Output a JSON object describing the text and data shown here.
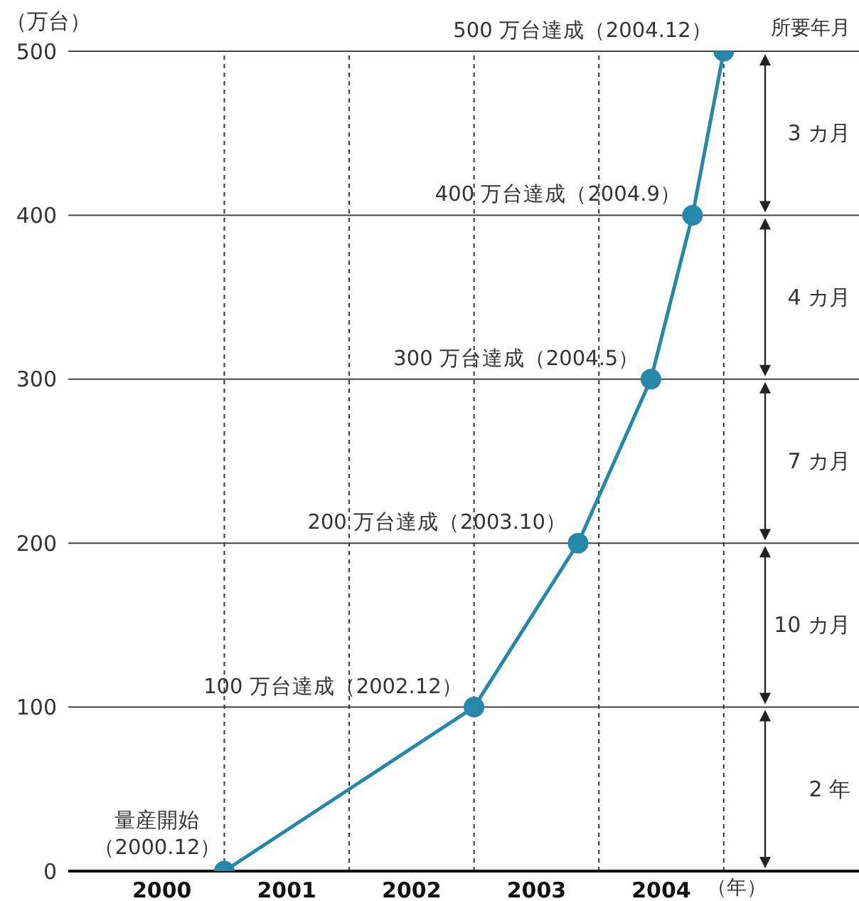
{
  "chart_data": {
    "type": "line",
    "xlabel": "（年）",
    "ylabel": "（万台）",
    "x": [
      "2000-12",
      "2002-12",
      "2003-10",
      "2004-05",
      "2004-09",
      "2004-12"
    ],
    "series": [
      {
        "color": "#2787a9",
        "values": [
          0,
          100,
          200,
          300,
          400,
          500
        ],
        "value_labels": [
          null,
          "100 万台達成（2002.12）",
          "200 万台達成（2003.10）",
          "300 万台達成（2004.5）",
          "400 万台達成（2004.9）",
          "500 万台達成（2004.12）"
        ]
      }
    ],
    "xlim": [
      "1999-09",
      "2006-01"
    ],
    "xticks": [
      {
        "value": "2000-06",
        "label": "2000"
      },
      {
        "value": "2001-06",
        "label": "2001"
      },
      {
        "value": "2002-06",
        "label": "2002"
      },
      {
        "value": "2003-06",
        "label": "2003"
      },
      {
        "value": "2004-06",
        "label": "2004"
      }
    ],
    "ylim": [
      0,
      500
    ],
    "yticks": [
      0,
      100,
      200,
      300,
      400,
      500
    ],
    "grid": "y",
    "marker": "circle",
    "line_style": "solid",
    "legend": false,
    "ref_lines": [
      {
        "axis": "x",
        "value": "2000-12",
        "line_style": "dashed"
      },
      {
        "axis": "x",
        "value": "2001-12",
        "line_style": "dashed"
      },
      {
        "axis": "x",
        "value": "2002-12",
        "line_style": "dashed"
      },
      {
        "axis": "x",
        "value": "2003-12",
        "line_style": "dashed"
      },
      {
        "axis": "x",
        "value": "2004-12",
        "line_style": "dashed"
      }
    ],
    "annotations": [
      {
        "text": "量産開始（2000.12）",
        "x": "2000-12",
        "y": 0
      },
      "所要年月",
      "3 カ月",
      "4 カ月",
      "7 カ月",
      "10 カ月",
      "2 年"
    ]
  }
}
